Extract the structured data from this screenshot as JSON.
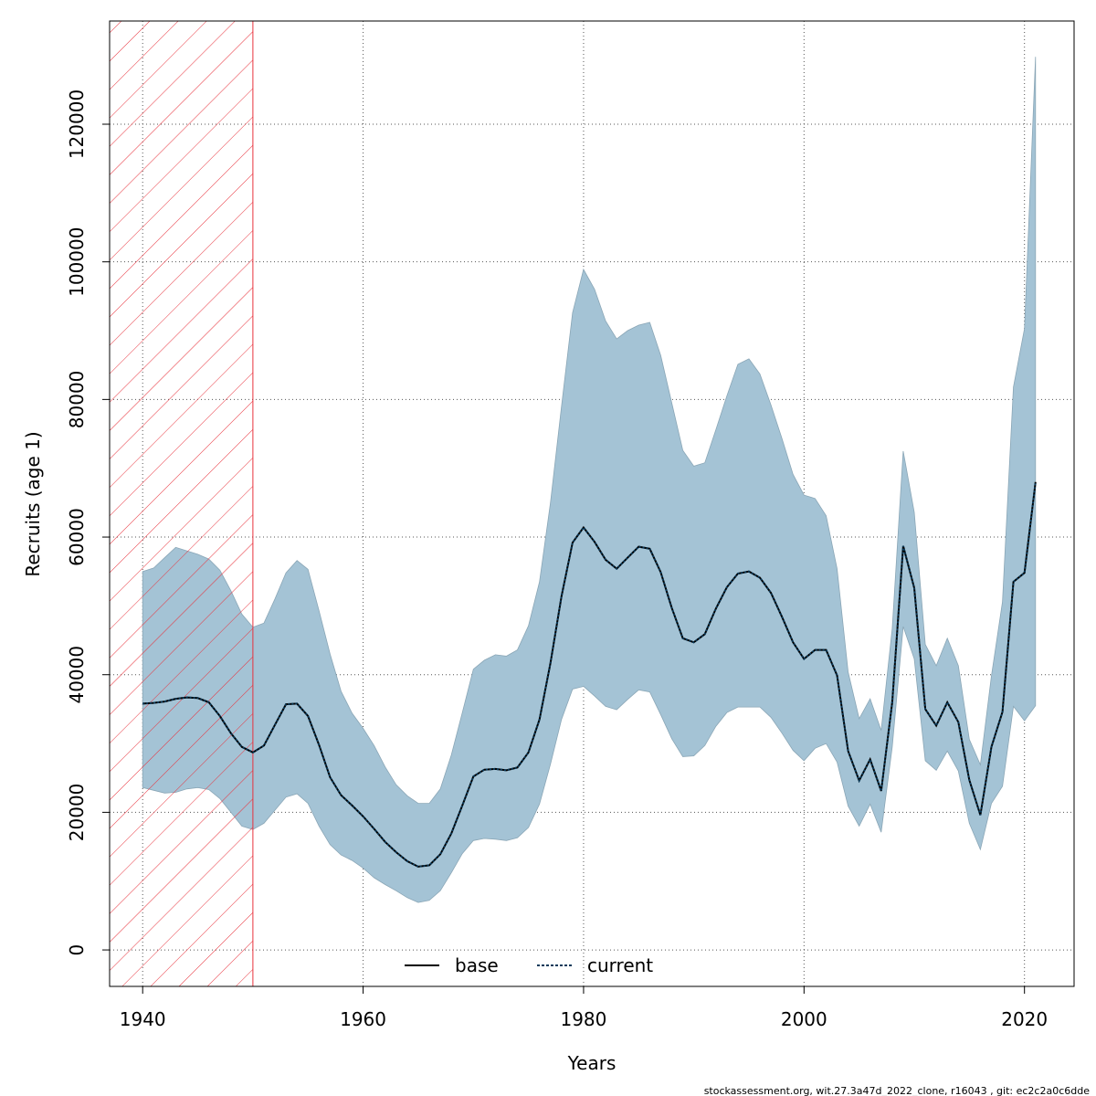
{
  "chart_data": {
    "type": "area",
    "xlabel": "Years",
    "ylabel": "Recruits (age 1)",
    "xlim": [
      1937,
      2024.5
    ],
    "ylim": [
      -5300,
      135000
    ],
    "xticks": [
      1940,
      1960,
      1980,
      2000,
      2020
    ],
    "yticks": [
      0,
      20000,
      40000,
      60000,
      80000,
      100000,
      120000
    ],
    "grid": true,
    "legend_position": "bottom-center",
    "colors": {
      "band": "#a4c3d5",
      "band_edge": "#8aa6b6",
      "current": "#0a3a5a",
      "base": "#000000",
      "hatch": "#e8323c",
      "grid": "#555555"
    },
    "shaded_region": {
      "x_from": 1937,
      "x_to": 1950,
      "pattern": "red diagonal hatch"
    },
    "x": [
      1940,
      1941,
      1942,
      1943,
      1944,
      1945,
      1946,
      1947,
      1948,
      1949,
      1950,
      1951,
      1952,
      1953,
      1954,
      1955,
      1956,
      1957,
      1958,
      1959,
      1960,
      1961,
      1962,
      1963,
      1964,
      1965,
      1966,
      1967,
      1968,
      1969,
      1970,
      1971,
      1972,
      1973,
      1974,
      1975,
      1976,
      1977,
      1978,
      1979,
      1980,
      1981,
      1982,
      1983,
      1984,
      1985,
      1986,
      1987,
      1988,
      1989,
      1990,
      1991,
      1992,
      1993,
      1994,
      1995,
      1996,
      1997,
      1998,
      1999,
      2000,
      2001,
      2002,
      2003,
      2004,
      2005,
      2006,
      2007,
      2008,
      2009,
      2010,
      2011,
      2012,
      2013,
      2014,
      2015,
      2016,
      2017,
      2018,
      2019,
      2020,
      2021
    ],
    "series": [
      {
        "name": "current",
        "style": "dotted",
        "values": [
          35800,
          35900,
          36100,
          36500,
          36700,
          36600,
          36000,
          34000,
          31500,
          29500,
          28700,
          29700,
          32700,
          35700,
          35800,
          34000,
          29800,
          25100,
          22500,
          21000,
          19400,
          17600,
          15700,
          14200,
          12900,
          12100,
          12300,
          13900,
          16900,
          21000,
          25200,
          26200,
          26300,
          26100,
          26500,
          28700,
          33500,
          41700,
          51400,
          59200,
          61400,
          59300,
          56700,
          55400,
          57000,
          58600,
          58300,
          54900,
          49700,
          45300,
          44700,
          45900,
          49600,
          52700,
          54700,
          55000,
          54100,
          51900,
          48400,
          44700,
          42300,
          43600,
          43600,
          39900,
          28900,
          24600,
          27700,
          23100,
          36000,
          58700,
          52600,
          35000,
          32600,
          36000,
          33100,
          24700,
          19600,
          29500,
          34600,
          53500,
          54800,
          68000
        ]
      },
      {
        "name": "base",
        "style": "solid",
        "values": [
          35800,
          35900,
          36100,
          36500,
          36700,
          36600,
          36000,
          34000,
          31500,
          29500,
          28700,
          29700,
          32700,
          35700,
          35800,
          34000,
          29800,
          25100,
          22500,
          21000,
          19400,
          17600,
          15700,
          14200,
          12900,
          12100,
          12300,
          13900,
          16900,
          21000,
          25200,
          26200,
          26300,
          26100,
          26500,
          28700,
          33500,
          41700,
          51400,
          59200,
          61400,
          59300,
          56700,
          55400,
          57000,
          58600,
          58300,
          54900,
          49700,
          45300,
          44700,
          45900,
          49600,
          52700,
          54700,
          55000,
          54100,
          51900,
          48400,
          44700,
          42300,
          43600,
          43600,
          39900,
          28900,
          24600,
          27700,
          23100,
          36000,
          58700,
          52600,
          35000,
          32600,
          36000,
          33100,
          24700,
          19600,
          29500,
          34600,
          53500,
          54800,
          68000
        ]
      }
    ],
    "band": {
      "upper": [
        55000,
        55500,
        57000,
        58500,
        58000,
        57500,
        56800,
        55200,
        52200,
        48800,
        46900,
        47500,
        51000,
        54800,
        56600,
        55300,
        49300,
        43000,
        37600,
        34400,
        32200,
        29700,
        26600,
        24000,
        22400,
        21300,
        21300,
        23400,
        28300,
        34500,
        40800,
        42100,
        42900,
        42700,
        43600,
        47100,
        53500,
        65000,
        79000,
        92600,
        98900,
        96000,
        91400,
        88800,
        90000,
        90800,
        91200,
        86400,
        79500,
        72600,
        70300,
        70800,
        75600,
        80500,
        85100,
        85900,
        83700,
        79200,
        74300,
        69100,
        66100,
        65600,
        63100,
        55400,
        40400,
        33600,
        36500,
        31900,
        46700,
        72500,
        63600,
        44400,
        41300,
        45300,
        41300,
        30600,
        26900,
        39800,
        50600,
        81800,
        90300,
        129800
      ],
      "lower": [
        23600,
        23200,
        22800,
        22900,
        23400,
        23600,
        23300,
        22000,
        20000,
        18000,
        17500,
        18400,
        20300,
        22200,
        22700,
        21300,
        18000,
        15300,
        13800,
        13000,
        11900,
        10500,
        9500,
        8600,
        7600,
        6900,
        7200,
        8600,
        11200,
        14000,
        15900,
        16200,
        16100,
        15900,
        16300,
        17800,
        21200,
        27000,
        33500,
        37900,
        38300,
        36900,
        35400,
        34900,
        36400,
        37800,
        37500,
        34200,
        30700,
        28100,
        28200,
        29700,
        32500,
        34500,
        35300,
        35300,
        35300,
        33800,
        31500,
        29000,
        27500,
        29300,
        30000,
        27300,
        20900,
        18000,
        21200,
        17100,
        29500,
        47000,
        42300,
        27500,
        26100,
        28900,
        26000,
        18400,
        14600,
        21300,
        23800,
        35400,
        33300,
        35500
      ]
    },
    "legend": [
      "base",
      "current"
    ],
    "footer": "stockassessment.org, wit.27.3a47d_2022_clone, r16043 , git: ec2c2a0c6dde"
  }
}
